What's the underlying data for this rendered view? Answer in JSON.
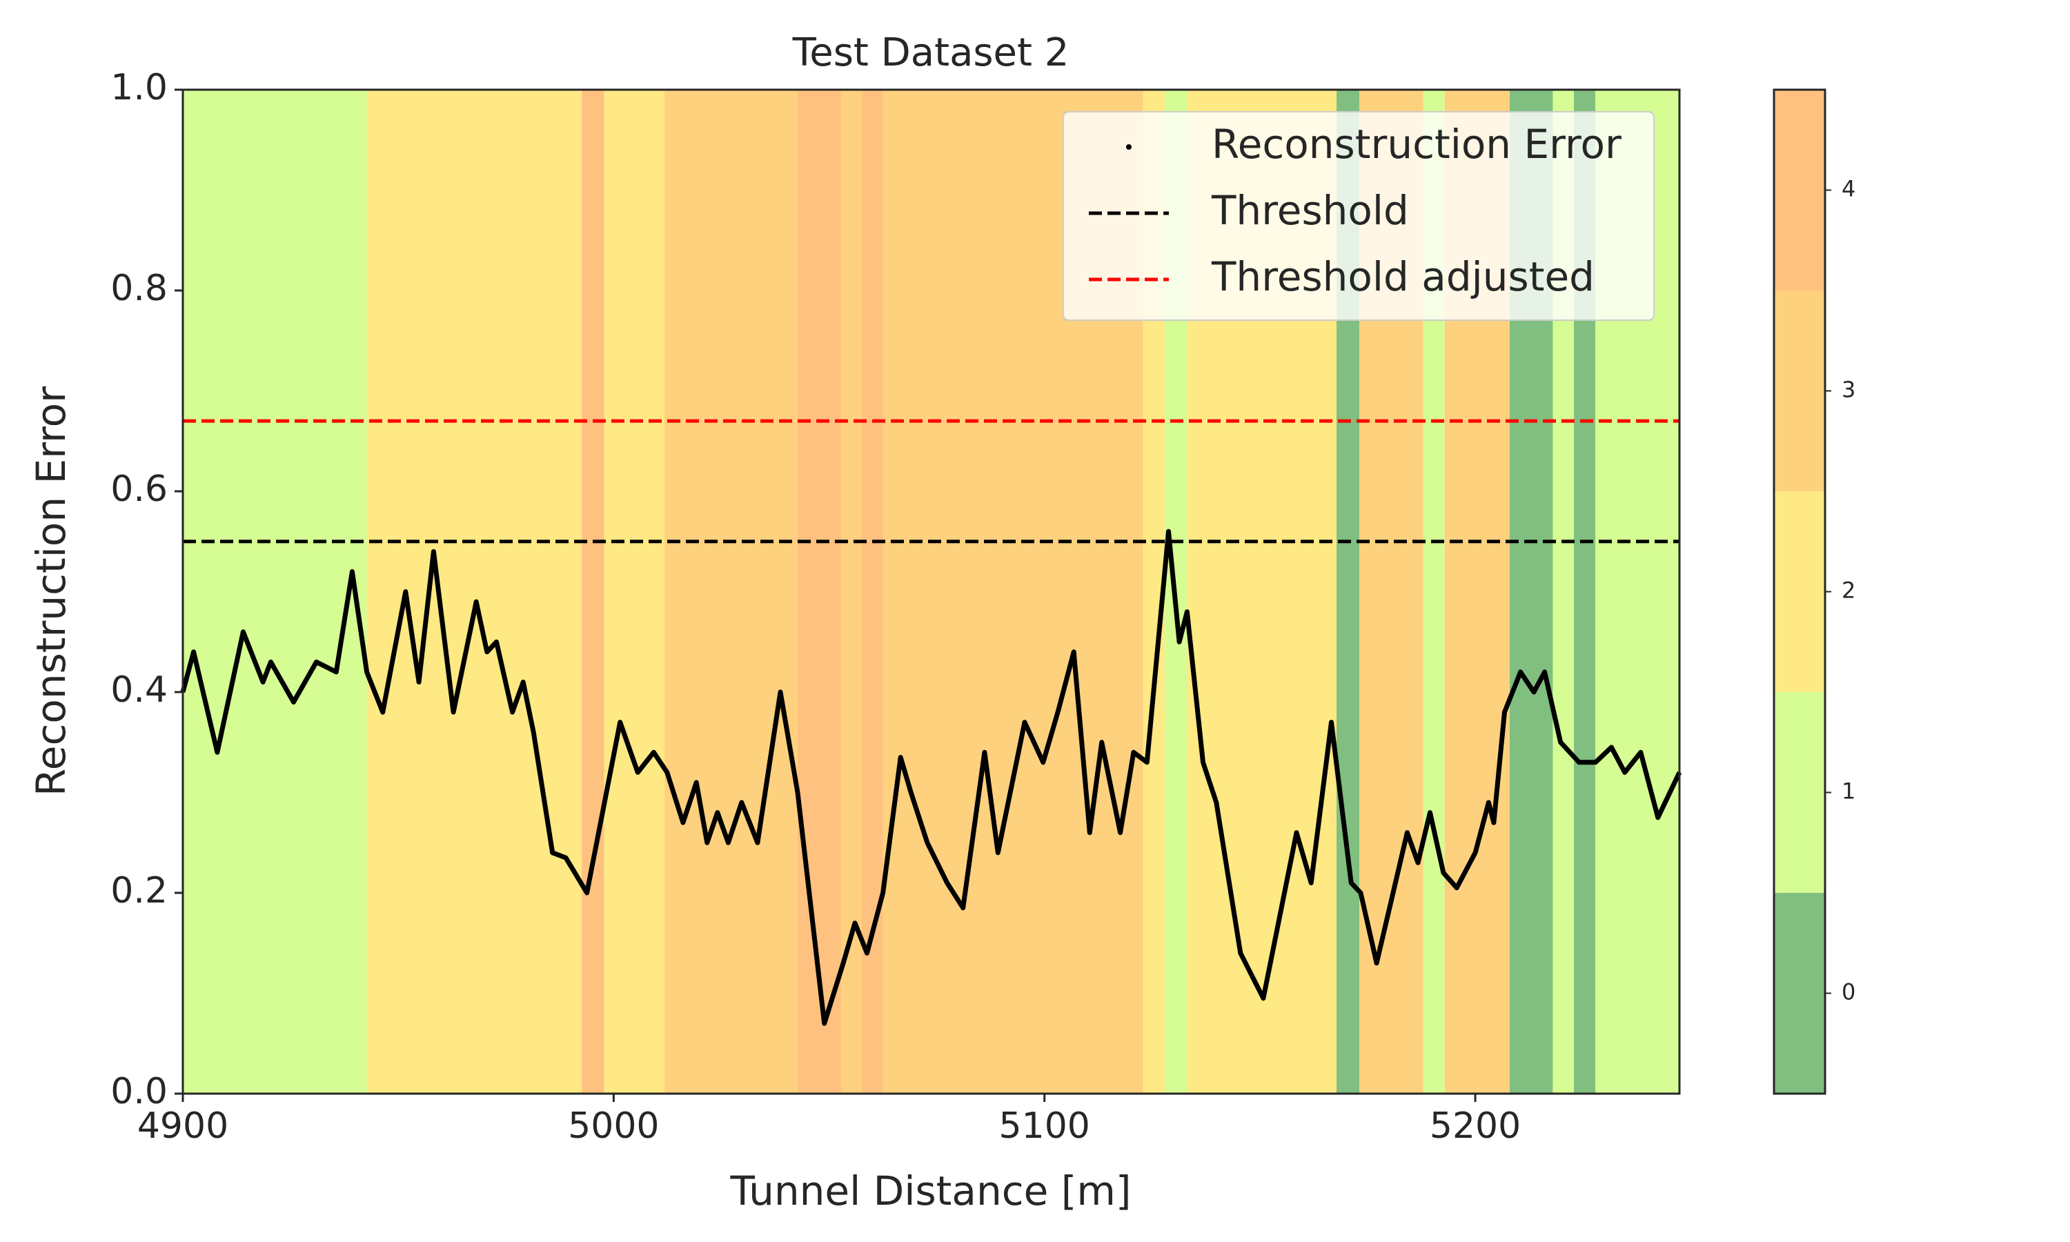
{
  "chart_data": {
    "type": "line",
    "title": "Test Dataset 2",
    "x_label": "Tunnel Distance [m]",
    "y_label": "Reconstruction Error",
    "xlim": [
      4900,
      5247.4
    ],
    "ylim": [
      0,
      1
    ],
    "xticks": [
      4900,
      5000,
      5100,
      5200
    ],
    "yticks": [
      {
        "value": 0,
        "label": "0.0"
      },
      {
        "value": 0.2,
        "label": "0.2"
      },
      {
        "value": 0.4,
        "label": "0.4"
      },
      {
        "value": 0.6,
        "label": "0.6"
      },
      {
        "value": 0.8,
        "label": "0.8"
      },
      {
        "value": 1,
        "label": "1.0"
      }
    ],
    "legend": "upper right",
    "series": [
      {
        "name": "Reconstruction Error",
        "color": "#000000",
        "x": [
          4900,
          4902.5,
          4908,
          4914,
          4918.6,
          4920.4,
          4925.7,
          4931,
          4935.6,
          4939.3,
          4942.7,
          4946.4,
          4951.7,
          4954.8,
          4958.2,
          4962.8,
          4968.1,
          4970.6,
          4972.8,
          4976.5,
          4979,
          4981.4,
          4985.8,
          4988.9,
          4993.8,
          5001.5,
          5005.6,
          5009.3,
          5012.4,
          5016.1,
          5019.2,
          5021.7,
          5024.1,
          5026.6,
          5029.7,
          5033.4,
          5038.7,
          5042.7,
          5048.9,
          5053.3,
          5056,
          5058.8,
          5062.5,
          5066.6,
          5069,
          5072.8,
          5077.4,
          5081.1,
          5086.1,
          5089.2,
          5095.4,
          5099.7,
          5103.1,
          5106.8,
          5110.5,
          5113.3,
          5117.6,
          5120.7,
          5123.8,
          5128.8,
          5131.3,
          5133.1,
          5136.8,
          5139.9,
          5145.5,
          5150.8,
          5158.5,
          5161.9,
          5166.6,
          5171.2,
          5173.4,
          5177.1,
          5184.2,
          5186.7,
          5189.5,
          5192.6,
          5195.7,
          5200,
          5203.1,
          5204.3,
          5206.8,
          5210.5,
          5213.6,
          5216.1,
          5219.8,
          5224.1,
          5227.9,
          5231.6,
          5234.7,
          5238.4,
          5242.4,
          5247.4
        ],
        "values": [
          0.4,
          0.44,
          0.34,
          0.46,
          0.41,
          0.43,
          0.39,
          0.43,
          0.42,
          0.52,
          0.42,
          0.38,
          0.5,
          0.41,
          0.54,
          0.38,
          0.49,
          0.44,
          0.45,
          0.38,
          0.41,
          0.36,
          0.24,
          0.235,
          0.2,
          0.37,
          0.32,
          0.34,
          0.32,
          0.27,
          0.31,
          0.25,
          0.28,
          0.25,
          0.29,
          0.25,
          0.4,
          0.3,
          0.07,
          0.13,
          0.17,
          0.14,
          0.2,
          0.335,
          0.3,
          0.25,
          0.21,
          0.185,
          0.34,
          0.24,
          0.37,
          0.33,
          0.38,
          0.44,
          0.26,
          0.35,
          0.26,
          0.34,
          0.33,
          0.56,
          0.45,
          0.48,
          0.33,
          0.29,
          0.14,
          0.095,
          0.26,
          0.21,
          0.37,
          0.21,
          0.2,
          0.13,
          0.26,
          0.23,
          0.28,
          0.22,
          0.205,
          0.24,
          0.29,
          0.27,
          0.38,
          0.42,
          0.4,
          0.42,
          0.35,
          0.33,
          0.33,
          0.345,
          0.32,
          0.34,
          0.275,
          0.32
        ]
      }
    ],
    "thresholds": [
      {
        "name": "Threshold",
        "value": 0.55,
        "color": "#000000"
      },
      {
        "name": "Threshold adjusted",
        "value": 0.67,
        "color": "#ff0000"
      }
    ],
    "bands": {
      "edges": [
        4900,
        4942.7,
        4992.6,
        4997.8,
        5011.8,
        5042.7,
        5052.9,
        5057.6,
        5062.5,
        5122.9,
        5127.9,
        5133.1,
        5167.8,
        5173.1,
        5187.9,
        5192.9,
        5208,
        5218,
        5222.9,
        5227.9,
        5247.4
      ],
      "classes": [
        1,
        2,
        4,
        2,
        3,
        4,
        3,
        4,
        3,
        2,
        1,
        2,
        0,
        3,
        1,
        3,
        0,
        1,
        0,
        1
      ]
    },
    "colorbar": {
      "lim": [
        -0.5,
        4.5
      ],
      "ticks": [
        0,
        1,
        2,
        3,
        4
      ],
      "colors": [
        "#80bf7f",
        "#d5fd93",
        "#fee985",
        "#fed17f",
        "#fec17f"
      ]
    }
  }
}
